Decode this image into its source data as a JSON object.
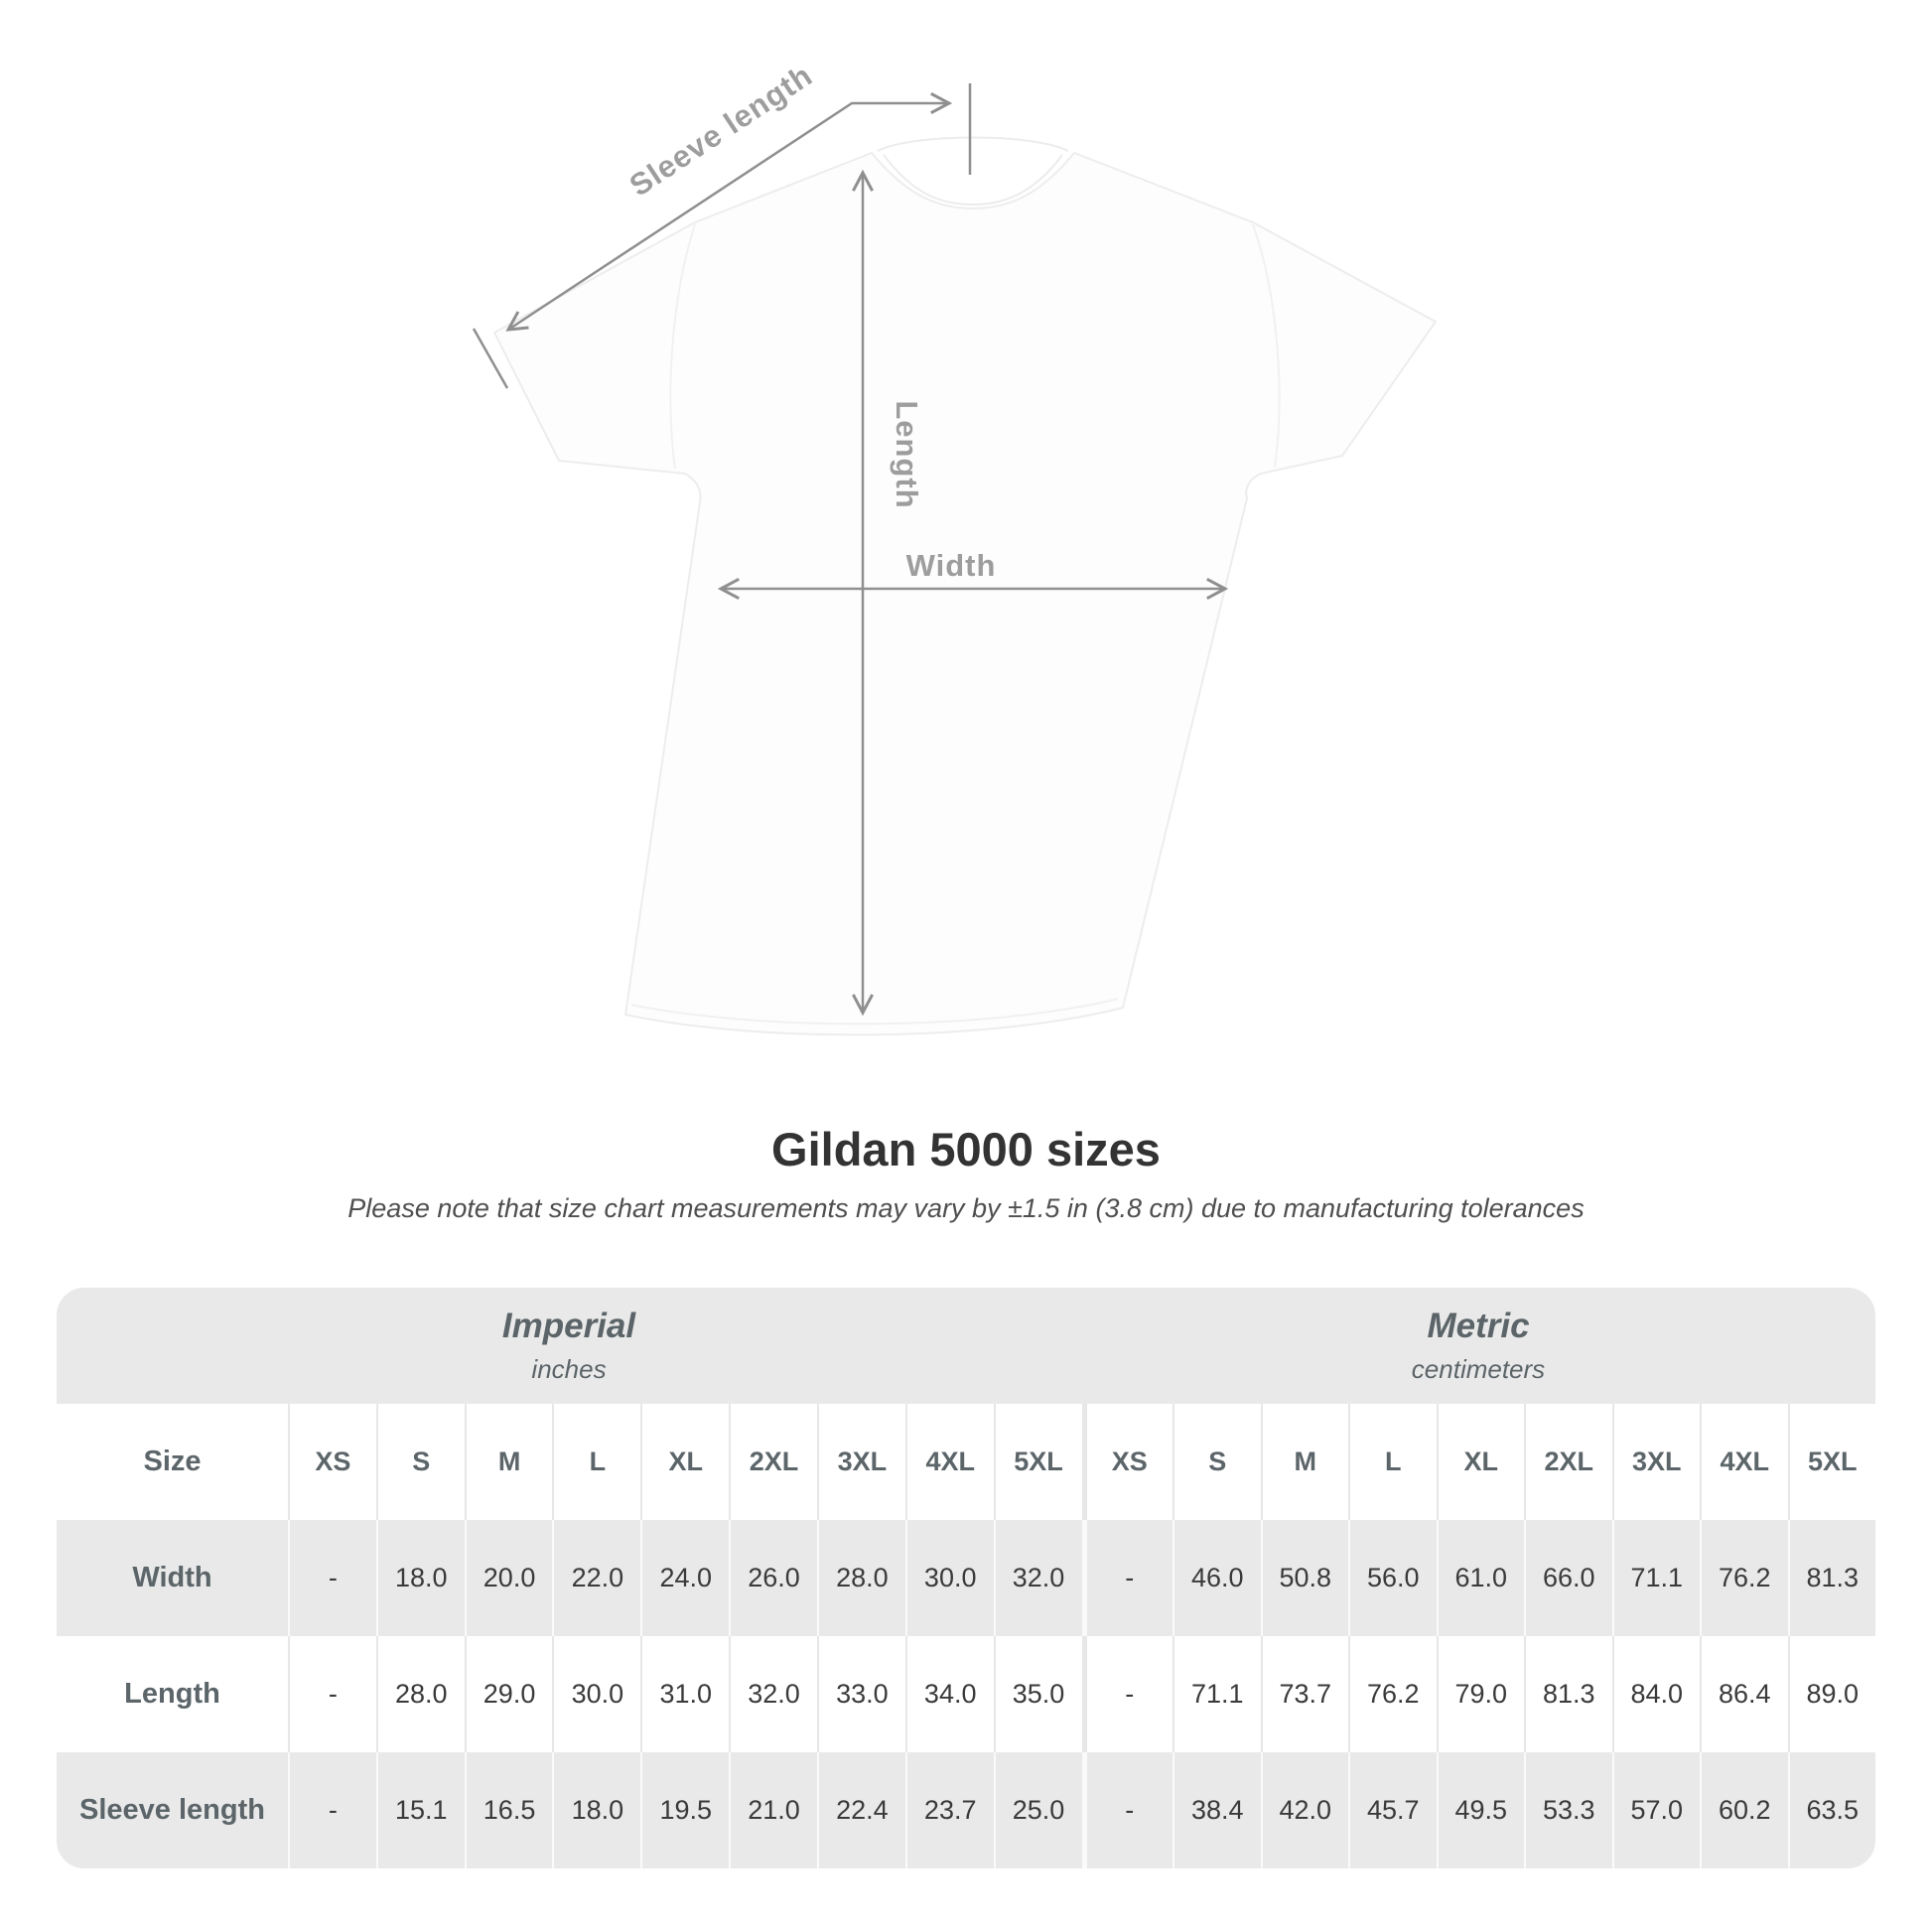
{
  "shirt": {
    "sleeve_label": "Sleeve length",
    "length_label": "Length",
    "width_label": "Width",
    "line_color": "#8f8f8f",
    "label_color": "#9d9d9d"
  },
  "header": {
    "title": "Gildan 5000 sizes",
    "subtitle": "Please note that size chart measurements may vary by ±1.5 in (3.8 cm) due to manufacturing tolerances"
  },
  "table": {
    "size_column_label": "Size",
    "units": [
      {
        "name": "Imperial",
        "unit": "inches"
      },
      {
        "name": "Metric",
        "unit": "centimeters"
      }
    ],
    "sizes": [
      "XS",
      "S",
      "M",
      "L",
      "XL",
      "2XL",
      "3XL",
      "4XL",
      "5XL"
    ],
    "rows": [
      {
        "label": "Width",
        "imperial": [
          "-",
          "18.0",
          "20.0",
          "22.0",
          "24.0",
          "26.0",
          "28.0",
          "30.0",
          "32.0"
        ],
        "metric": [
          "-",
          "46.0",
          "50.8",
          "56.0",
          "61.0",
          "66.0",
          "71.1",
          "76.2",
          "81.3"
        ]
      },
      {
        "label": "Length",
        "imperial": [
          "-",
          "28.0",
          "29.0",
          "30.0",
          "31.0",
          "32.0",
          "33.0",
          "34.0",
          "35.0"
        ],
        "metric": [
          "-",
          "71.1",
          "73.7",
          "76.2",
          "79.0",
          "81.3",
          "84.0",
          "86.4",
          "89.0"
        ]
      },
      {
        "label": "Sleeve length",
        "imperial": [
          "-",
          "15.1",
          "16.5",
          "18.0",
          "19.5",
          "21.0",
          "22.4",
          "23.7",
          "25.0"
        ],
        "metric": [
          "-",
          "38.4",
          "42.0",
          "45.7",
          "49.5",
          "53.3",
          "57.0",
          "60.2",
          "63.5"
        ]
      }
    ],
    "colors": {
      "table_bg": "#e9e9e9",
      "header_text": "#5c6569",
      "value_text": "#3a3a3a"
    }
  }
}
